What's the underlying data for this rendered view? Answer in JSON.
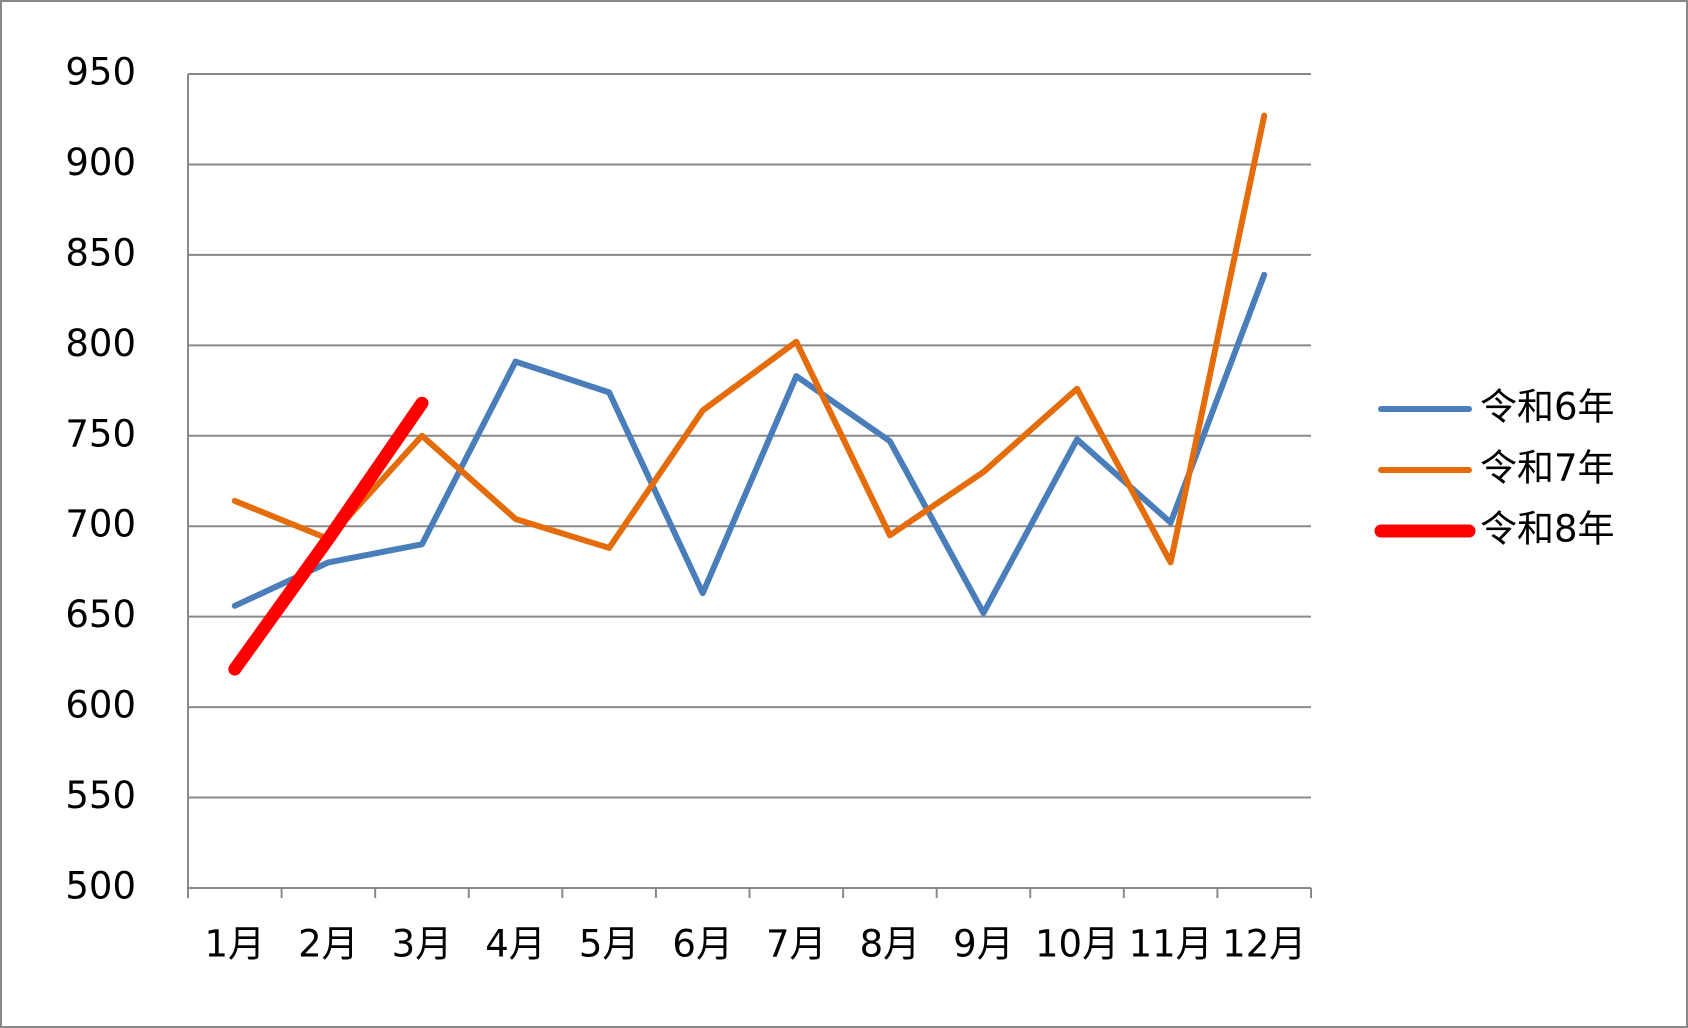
{
  "chart_data": {
    "type": "line",
    "categories": [
      "1月",
      "2月",
      "3月",
      "4月",
      "5月",
      "6月",
      "7月",
      "8月",
      "9月",
      "10月",
      "11月",
      "12月"
    ],
    "series": [
      {
        "name": "令和6年",
        "color": "#4a7ebb",
        "values": [
          656,
          680,
          690,
          791,
          774,
          663,
          783,
          747,
          652,
          748,
          702,
          839
        ]
      },
      {
        "name": "令和7年",
        "color": "#e46c0a",
        "values": [
          714,
          693,
          750,
          704,
          688,
          764,
          802,
          695,
          730,
          776,
          680,
          927
        ]
      },
      {
        "name": "令和8年",
        "color": "#ff0000",
        "values": [
          621,
          693,
          768,
          null,
          null,
          null,
          null,
          null,
          null,
          null,
          null,
          null
        ]
      }
    ],
    "ylim": [
      500,
      950
    ],
    "yticks": [
      500,
      550,
      600,
      650,
      700,
      750,
      800,
      850,
      900,
      950
    ],
    "grid": true,
    "legend": "right"
  }
}
